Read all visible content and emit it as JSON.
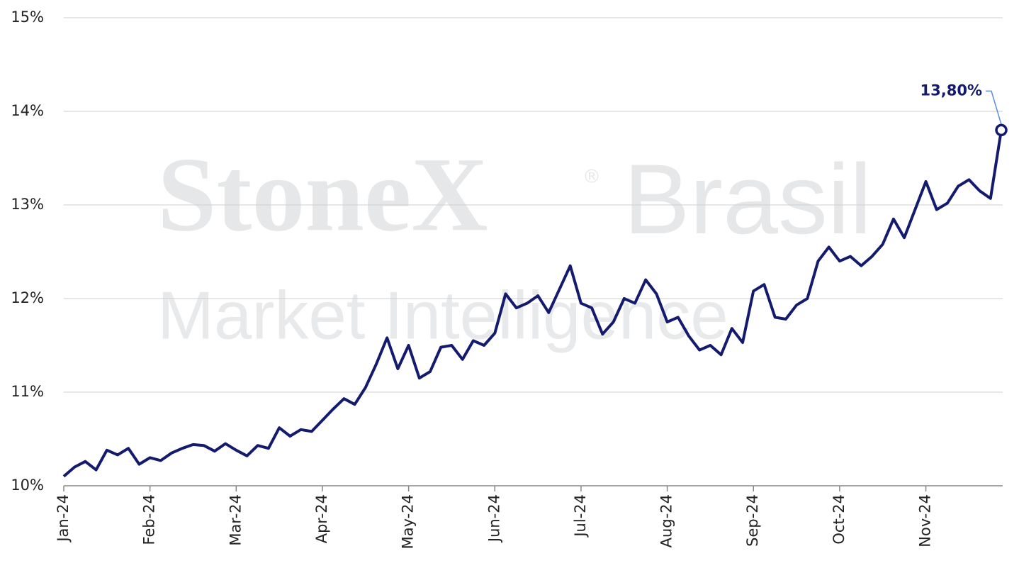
{
  "chart_data": {
    "type": "line",
    "watermark": {
      "brand": "StoneX",
      "mark": "®",
      "name": "Brasil",
      "subtitle": "Market Intelligence"
    },
    "categories": [
      "Jan-24",
      null,
      null,
      null,
      null,
      null,
      null,
      null,
      "Feb-24",
      null,
      null,
      null,
      null,
      null,
      null,
      null,
      "Mar-24",
      null,
      null,
      null,
      null,
      null,
      null,
      null,
      "Apr-24",
      null,
      null,
      null,
      null,
      null,
      null,
      null,
      "May-24",
      null,
      null,
      null,
      null,
      null,
      null,
      null,
      "Jun-24",
      null,
      null,
      null,
      null,
      null,
      null,
      null,
      "Jul-24",
      null,
      null,
      null,
      null,
      null,
      null,
      null,
      "Aug-24",
      null,
      null,
      null,
      null,
      null,
      null,
      null,
      "Sep-24",
      null,
      null,
      null,
      null,
      null,
      null,
      null,
      "Oct-24",
      null,
      null,
      null,
      null,
      null,
      null,
      null,
      "Nov-24",
      null,
      null,
      null,
      null,
      null,
      null,
      null
    ],
    "series": [
      {
        "color": "#141a6e",
        "values": [
          10.1,
          10.2,
          10.26,
          10.17,
          10.38,
          10.33,
          10.4,
          10.23,
          10.3,
          10.27,
          10.35,
          10.4,
          10.44,
          10.43,
          10.37,
          10.45,
          10.38,
          10.32,
          10.43,
          10.4,
          10.62,
          10.53,
          10.6,
          10.58,
          10.7,
          10.82,
          10.93,
          10.87,
          11.05,
          11.3,
          11.58,
          11.25,
          11.5,
          11.15,
          11.22,
          11.48,
          11.5,
          11.35,
          11.55,
          11.5,
          11.63,
          12.05,
          11.9,
          11.95,
          12.03,
          11.85,
          12.1,
          12.35,
          11.95,
          11.9,
          11.62,
          11.75,
          12.0,
          11.95,
          12.2,
          12.05,
          11.75,
          11.8,
          11.6,
          11.45,
          11.5,
          11.4,
          11.68,
          11.53,
          12.08,
          12.15,
          11.8,
          11.78,
          11.93,
          12.0,
          12.4,
          12.55,
          12.4,
          12.45,
          12.35,
          12.45,
          12.58,
          12.85,
          12.65,
          12.95,
          13.25,
          12.95,
          13.02,
          13.2,
          13.27,
          13.15,
          13.07,
          13.8
        ],
        "value_labels": [
          null,
          null,
          null,
          null,
          null,
          null,
          null,
          null,
          null,
          null,
          null,
          null,
          null,
          null,
          null,
          null,
          null,
          null,
          null,
          null,
          null,
          null,
          null,
          null,
          null,
          null,
          null,
          null,
          null,
          null,
          null,
          null,
          null,
          null,
          null,
          null,
          null,
          null,
          null,
          null,
          null,
          null,
          null,
          null,
          null,
          null,
          null,
          null,
          null,
          null,
          null,
          null,
          null,
          null,
          null,
          null,
          null,
          null,
          null,
          null,
          null,
          null,
          null,
          null,
          null,
          null,
          null,
          null,
          null,
          null,
          null,
          null,
          null,
          null,
          null,
          null,
          null,
          null,
          null,
          null,
          null,
          null,
          null,
          null,
          null,
          null,
          null,
          "13,80%"
        ]
      }
    ],
    "ylim": [
      10,
      15
    ],
    "yticks": [
      {
        "value": 10,
        "label": "10%"
      },
      {
        "value": 11,
        "label": "11%"
      },
      {
        "value": 12,
        "label": "12%"
      },
      {
        "value": 13,
        "label": "13%"
      },
      {
        "value": 14,
        "label": "14%"
      },
      {
        "value": 15,
        "label": "15%"
      }
    ],
    "grid": true
  }
}
